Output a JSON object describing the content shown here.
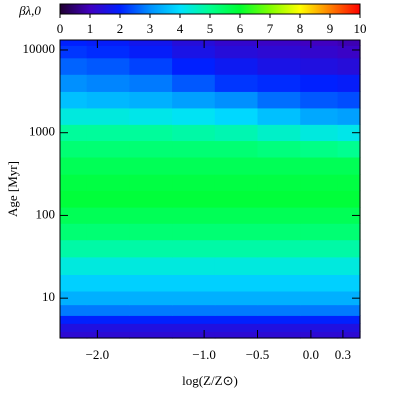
{
  "chart_data": {
    "type": "heatmap",
    "colorbar_label": "βλ,0",
    "xlabel": "log(Z/Z⊙)",
    "ylabel": "Age [Myr]",
    "x": [
      -2.3,
      -1.9,
      -1.5,
      -1.1,
      -0.7,
      -0.3,
      0.1,
      0.4
    ],
    "y": [
      3.5,
      4.5,
      5.5,
      7,
      10,
      15,
      25,
      40,
      65,
      100,
      160,
      250,
      400,
      650,
      1000,
      1600,
      2500,
      4000,
      6500,
      10000,
      13000
    ],
    "z": [
      [
        1.3,
        1.3,
        1.3,
        1.3,
        1.3,
        1.3,
        1.3,
        1.3
      ],
      [
        1.5,
        1.5,
        1.5,
        1.5,
        1.5,
        1.5,
        1.5,
        1.5
      ],
      [
        2.0,
        2.0,
        2.0,
        2.0,
        2.0,
        2.0,
        2.0,
        2.0
      ],
      [
        2.8,
        2.8,
        2.8,
        2.8,
        2.8,
        2.8,
        2.8,
        2.8
      ],
      [
        3.4,
        3.4,
        3.4,
        3.4,
        3.4,
        3.4,
        3.4,
        3.4
      ],
      [
        3.8,
        3.8,
        3.8,
        3.8,
        3.8,
        3.8,
        3.8,
        3.8
      ],
      [
        4.3,
        4.3,
        4.3,
        4.3,
        4.3,
        4.3,
        4.3,
        4.3
      ],
      [
        4.8,
        4.8,
        4.8,
        4.8,
        4.8,
        4.8,
        4.8,
        4.8
      ],
      [
        5.3,
        5.3,
        5.3,
        5.3,
        5.3,
        5.3,
        5.3,
        5.3
      ],
      [
        5.6,
        5.6,
        5.6,
        5.6,
        5.6,
        5.6,
        5.6,
        5.6
      ],
      [
        5.9,
        5.9,
        5.9,
        5.9,
        5.9,
        5.9,
        5.9,
        5.9
      ],
      [
        5.8,
        5.8,
        5.8,
        5.8,
        5.8,
        5.8,
        5.8,
        5.8
      ],
      [
        5.6,
        5.6,
        5.6,
        5.6,
        5.6,
        5.6,
        5.6,
        5.6
      ],
      [
        5.3,
        5.3,
        5.3,
        5.3,
        5.3,
        5.2,
        5.1,
        5.0
      ],
      [
        4.9,
        4.9,
        4.9,
        4.8,
        4.7,
        4.5,
        4.3,
        4.2
      ],
      [
        4.3,
        4.3,
        4.2,
        4.1,
        3.9,
        3.6,
        3.3,
        3.2
      ],
      [
        3.6,
        3.5,
        3.4,
        3.2,
        3.0,
        2.7,
        2.5,
        2.4
      ],
      [
        3.0,
        2.9,
        2.8,
        2.5,
        2.2,
        2.1,
        2.0,
        1.9
      ],
      [
        2.6,
        2.5,
        2.3,
        2.0,
        1.8,
        1.6,
        1.5,
        1.4
      ],
      [
        2.2,
        2.1,
        1.9,
        1.6,
        1.4,
        1.3,
        1.2,
        1.1
      ],
      [
        2.0,
        1.9,
        1.7,
        1.4,
        1.2,
        1.1,
        1.0,
        0.9
      ]
    ],
    "xlim": [
      -2.35,
      0.46
    ],
    "ylim": [
      3.3,
      13200
    ],
    "ylog": true,
    "xticks": [
      {
        "value": -2,
        "label": "−2.0"
      },
      {
        "value": -1,
        "label": "−1.0"
      },
      {
        "value": -0.5,
        "label": "−0.5"
      },
      {
        "value": 0,
        "label": "0.0"
      },
      0.3
    ],
    "yticks": [
      10,
      100,
      1000,
      10000
    ],
    "zlim": [
      0,
      10
    ],
    "cticks": [
      0,
      1,
      2,
      3,
      4,
      5,
      6,
      7,
      8,
      9,
      10
    ],
    "colormap": [
      "#200030",
      "#4000c0",
      "#0020ff",
      "#0090ff",
      "#00e0ff",
      "#00ff90",
      "#00ff30",
      "#80ff00",
      "#ffff00",
      "#ff8000",
      "#ff0000"
    ]
  }
}
